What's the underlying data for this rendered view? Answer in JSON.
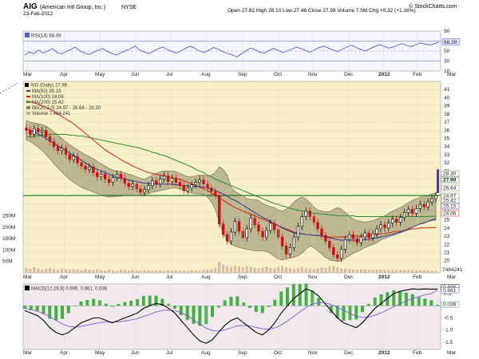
{
  "header": {
    "ticker": "AIG",
    "company": "(American Intl Group, Inc.)",
    "exchange": "NYSE",
    "date": "23-Feb-2012",
    "ohlc_text": "Open 27.82  High 28.10  Low 27.48  Close 27.99  Volume 7.5M  Chg +0.32 (+1.16%)",
    "brand": "© StockCharts.com"
  },
  "colors": {
    "price_panel_bg": "#f8f0c8",
    "rsi_panel_bg": "#f6f6ff",
    "macd_panel_bg": "#f1e9ee",
    "bollinger_fill": "#8c8866",
    "ma50": "#2a3a8a",
    "ma100": "#e02010",
    "ma200": "#2e8b2e",
    "rsi_line": "#4a5fd0",
    "macd_line": "#000000",
    "signal_line": "#7a5ad0",
    "histogram": "#44b044",
    "up_candle": "#000000",
    "down_candle": "#cc1111",
    "volume": "#d0b0a0"
  },
  "chart_data": [
    {
      "type": "line",
      "panel": "rsi",
      "legend_label": "RSI(14) 68.39",
      "ylim": [
        10,
        90
      ],
      "yticks": [
        90,
        70,
        50,
        30,
        10
      ],
      "last_value_label": "68.39",
      "series": [
        {
          "name": "RSI(14)",
          "values": [
            42,
            48,
            45,
            52,
            46,
            50,
            55,
            47,
            44,
            49,
            53,
            58,
            50,
            46,
            43,
            48,
            52,
            55,
            49,
            45,
            42,
            47,
            51,
            55,
            60,
            52,
            48,
            45,
            50,
            55,
            58,
            53,
            49,
            46,
            51,
            56,
            60,
            55,
            50,
            47,
            52,
            57,
            54,
            49,
            45,
            43,
            38,
            44,
            50,
            56,
            53,
            48,
            46,
            51,
            55,
            52,
            47,
            50,
            54,
            58,
            55,
            51,
            48,
            53,
            57,
            60,
            56,
            52,
            49,
            54,
            58,
            62,
            57,
            53,
            50,
            55,
            59,
            63,
            60,
            56,
            58,
            62,
            65,
            61,
            59,
            63,
            66,
            64,
            62,
            65,
            68
          ]
        }
      ]
    },
    {
      "type": "candlestick",
      "panel": "price",
      "x_ticks": [
        "Mar",
        "Apr",
        "May",
        "Jun",
        "Jul",
        "Aug",
        "Sep",
        "Oct",
        "Nov",
        "Dec",
        "2012",
        "Feb",
        "Mar"
      ],
      "ylim": [
        18.5,
        42
      ],
      "yticks": [
        20,
        21,
        22,
        23,
        24,
        25,
        26,
        27,
        28,
        29,
        30,
        31,
        32,
        33,
        34,
        35,
        36,
        37,
        38,
        39,
        40,
        41
      ],
      "legend": [
        "AIG (Daily) 27.99",
        "MA(50) 25.15",
        "MA(100) 24.06",
        "MA(200) 25.42",
        "BB(20,2.0) 24.97 - 26.64 - 28.30",
        "Volume 7,484,241"
      ],
      "price_labels": [
        "28.30",
        "27.99",
        "26.64",
        "25.42",
        "25.15",
        "24.97",
        "24.06"
      ],
      "horizontal_line": 27.99,
      "close": [
        36,
        35.5,
        36.2,
        35.8,
        36,
        35.2,
        34.6,
        34,
        33.5,
        33.8,
        33,
        32.4,
        32.8,
        32,
        31.6,
        31.2,
        31.5,
        30.8,
        30.3,
        30.6,
        30,
        29.6,
        30.2,
        30.6,
        30.1,
        29.5,
        29.1,
        29.4,
        28.8,
        28.4,
        28.7,
        29.2,
        29.8,
        29.4,
        30,
        30.4,
        29.7,
        30.1,
        29.6,
        29.2,
        28.6,
        28.9,
        29.3,
        29.6,
        29.9,
        29.4,
        28.9,
        28.5,
        28,
        24.5,
        23.2,
        22.4,
        23.5,
        24.8,
        23.6,
        22.8,
        23.9,
        25.2,
        24.4,
        23.6,
        22.9,
        23.7,
        24.6,
        23.8,
        22.9,
        21.8,
        20.8,
        21.6,
        22.9,
        24.2,
        25.4,
        26.1,
        25.4,
        24.7,
        23.9,
        23.1,
        22.4,
        21.6,
        20.7,
        20.3,
        21.4,
        22.6,
        23.2,
        22.7,
        22.2,
        22.9,
        23.4,
        22.8,
        23.3,
        23.9,
        24.4,
        24.0,
        24.6,
        25.1,
        24.7,
        25.3,
        25.9,
        26.3,
        25.8,
        26.4,
        26.9,
        26.6,
        27.2,
        27.6,
        27.99
      ],
      "ma50": [
        36.2,
        36,
        35.8,
        35.5,
        35.3,
        35,
        34.7,
        34.4,
        34.1,
        33.8,
        33.5,
        33.2,
        32.9,
        32.6,
        32.3,
        32,
        31.7,
        31.4,
        31.2,
        31,
        30.8,
        30.6,
        30.4,
        30.2,
        30.1,
        30,
        29.9,
        29.8,
        29.7,
        29.6,
        29.5,
        29.5,
        29.4,
        29.4,
        29.4,
        29.4,
        29.4,
        29.4,
        29.3,
        29.3,
        29.2,
        29.2,
        29.1,
        29.1,
        29.1,
        29,
        28.9,
        28.8,
        28.6,
        28.4,
        28.2,
        27.9,
        27.6,
        27.4,
        27.1,
        26.8,
        26.5,
        26.2,
        25.9,
        25.6,
        25.3,
        25.1,
        24.8,
        24.5,
        24.3,
        24,
        23.8,
        23.6,
        23.4,
        23.3,
        23.3,
        23.2,
        23.2,
        23.1,
        23.1,
        23,
        22.9,
        22.8,
        22.7,
        22.6,
        22.5,
        22.5,
        22.5,
        22.5,
        22.5,
        22.5,
        22.6,
        22.6,
        22.7,
        22.8,
        22.9,
        23,
        23.1,
        23.2,
        23.4,
        23.5,
        23.7,
        23.9,
        24.1,
        24.3,
        24.5,
        24.6,
        24.8,
        25,
        25.15
      ],
      "ma100": [
        39.6,
        39.5,
        39.4,
        39.2,
        39,
        38.8,
        38.6,
        38.3,
        38,
        37.7,
        37.4,
        37.1,
        36.8,
        36.4,
        36,
        35.6,
        35.2,
        34.8,
        34.4,
        34,
        33.6,
        33.3,
        33,
        32.7,
        32.4,
        32.1,
        31.9,
        31.6,
        31.4,
        31.2,
        31,
        30.8,
        30.7,
        30.6,
        30.5,
        30.4,
        30.3,
        30.2,
        30.1,
        30,
        29.8,
        29.6,
        29.4,
        29.2,
        29,
        28.8,
        28.6,
        28.3,
        28,
        27.7,
        27.4,
        27.1,
        26.8,
        26.5,
        26.3,
        26.1,
        25.9,
        25.7,
        25.5,
        25.3,
        25.1,
        24.9,
        24.7,
        24.5,
        24.3,
        24.1,
        23.9,
        23.7,
        23.5,
        23.4,
        23.3,
        23.2,
        23.2,
        23.1,
        23.1,
        23,
        23,
        22.9,
        22.9,
        22.9,
        22.9,
        22.9,
        23,
        23,
        23,
        23,
        23.1,
        23.1,
        23.2,
        23.2,
        23.3,
        23.3,
        23.4,
        23.5,
        23.6,
        23.6,
        23.7,
        23.8,
        23.9,
        23.9,
        24,
        24,
        24.05,
        24.06,
        24.06
      ],
      "ma200": [
        35.2,
        35.2,
        35.3,
        35.3,
        35.4,
        35.4,
        35.5,
        35.5,
        35.5,
        35.5,
        35.5,
        35.4,
        35.4,
        35.3,
        35.3,
        35.2,
        35.1,
        35,
        34.9,
        34.8,
        34.7,
        34.6,
        34.5,
        34.4,
        34.3,
        34.2,
        34.1,
        34,
        33.9,
        33.8,
        33.6,
        33.5,
        33.3,
        33.2,
        33,
        32.9,
        32.7,
        32.5,
        32.3,
        32.1,
        31.9,
        31.7,
        31.5,
        31.2,
        31,
        30.8,
        30.5,
        30.3,
        30,
        29.8,
        29.6,
        29.4,
        29.2,
        29,
        28.8,
        28.6,
        28.4,
        28.2,
        28,
        27.8,
        27.6,
        27.4,
        27.2,
        27,
        26.9,
        26.7,
        26.6,
        26.4,
        26.3,
        26.2,
        26.1,
        26,
        25.9,
        25.8,
        25.8,
        25.7,
        25.7,
        25.6,
        25.6,
        25.5,
        25.5,
        25.5,
        25.5,
        25.5,
        25.4,
        25.4,
        25.4,
        25.4,
        25.4,
        25.4,
        25.4,
        25.4,
        25.4,
        25.4,
        25.4,
        25.4,
        25.4,
        25.4,
        25.4,
        25.4,
        25.4,
        25.4,
        25.4,
        25.42,
        25.42
      ],
      "bb_upper": [
        37.2,
        37,
        36.9,
        36.8,
        36.7,
        36.5,
        36.2,
        35.8,
        35.4,
        35,
        34.6,
        34.2,
        33.9,
        33.6,
        33.3,
        33,
        32.8,
        32.5,
        32.2,
        31.9,
        31.6,
        31.3,
        31.1,
        31,
        30.9,
        30.8,
        30.6,
        30.5,
        30.3,
        30.1,
        30,
        30.2,
        30.5,
        30.7,
        30.9,
        31,
        31,
        31,
        30.9,
        30.7,
        30.5,
        30.3,
        30.3,
        30.4,
        30.5,
        30.5,
        30.4,
        30.5,
        30.8,
        31.5,
        31.2,
        30.5,
        29,
        28.5,
        28.2,
        28,
        27.6,
        27.5,
        27.5,
        27.4,
        27,
        26.8,
        26.6,
        26.5,
        26.2,
        26.1,
        26.3,
        26.7,
        27.2,
        27.6,
        27.8,
        27.6,
        27.1,
        26.6,
        26.2,
        26.1,
        26,
        26,
        26.3,
        26.5,
        26.3,
        25.9,
        25.5,
        25.1,
        24.9,
        24.8,
        24.7,
        24.8,
        24.9,
        25.1,
        25.3,
        25.5,
        25.8,
        26.1,
        26.3,
        26.5,
        26.8,
        27.1,
        27.4,
        27.6,
        27.8,
        27.9,
        28,
        28.2,
        28.3
      ],
      "bb_lower": [
        34.8,
        34.6,
        34.3,
        33.9,
        33.5,
        33,
        32.5,
        31.9,
        31.4,
        30.9,
        30.4,
        30,
        29.6,
        29.3,
        29,
        28.8,
        28.6,
        28.4,
        28.2,
        28,
        27.9,
        27.8,
        27.8,
        27.9,
        27.9,
        28,
        28,
        28,
        28,
        28,
        28.1,
        28.2,
        28.4,
        28.5,
        28.6,
        28.7,
        28.8,
        28.9,
        28.9,
        28.8,
        28.6,
        28.4,
        28.3,
        28.2,
        28.2,
        28.1,
        27.8,
        27.2,
        26.3,
        24.6,
        23.3,
        22.5,
        22,
        21.8,
        21.6,
        21.5,
        21.4,
        21.3,
        21.2,
        21.2,
        21.2,
        21.1,
        20.9,
        20.5,
        20.2,
        20.1,
        20.2,
        20.3,
        20.4,
        20.6,
        20.9,
        21.4,
        21.8,
        21.6,
        21.2,
        20.8,
        20.4,
        20.1,
        20,
        19.9,
        20,
        20.3,
        20.6,
        20.9,
        21.1,
        21.3,
        21.6,
        21.8,
        22,
        22.2,
        22.5,
        22.7,
        22.9,
        23.1,
        23.2,
        23.4,
        23.6,
        23.8,
        24.1,
        24.3,
        24.5,
        24.7,
        24.8,
        24.9,
        24.97
      ]
    },
    {
      "type": "bar",
      "panel": "volume",
      "yticks": [
        "250M",
        "200M",
        "150M",
        "100M",
        "50M"
      ],
      "ylim": [
        0,
        280
      ],
      "volume_label": "7484241",
      "values": [
        22,
        18,
        25,
        20,
        15,
        18,
        21,
        17,
        14,
        19,
        16,
        13,
        18,
        15,
        12,
        17,
        14,
        12,
        16,
        13,
        11,
        15,
        12,
        10,
        14,
        12,
        10,
        13,
        11,
        9,
        12,
        10,
        9,
        11,
        10,
        8,
        12,
        10,
        9,
        11,
        10,
        9,
        12,
        11,
        10,
        13,
        14,
        16,
        22,
        48,
        36,
        30,
        26,
        32,
        28,
        24,
        30,
        26,
        22,
        20,
        24,
        28,
        22,
        20,
        26,
        30,
        24,
        20,
        18,
        22,
        26,
        20,
        18,
        16,
        20,
        24,
        22,
        28,
        30,
        24,
        20,
        18,
        16,
        15,
        14,
        16,
        15,
        14,
        13,
        14,
        15,
        14,
        13,
        12,
        13,
        14,
        13,
        12,
        13,
        12,
        11,
        12,
        11,
        10,
        8
      ]
    },
    {
      "type": "line",
      "panel": "macd",
      "legend_label": "MACD(12,26,9) 0.696, 0.661, 0.036",
      "yticks": [
        "0.5",
        "0.0",
        "-0.5",
        "-1.0",
        "-1.5"
      ],
      "ylim": [
        -1.8,
        0.9
      ],
      "value_labels": [
        "0.696",
        "0.661",
        "0.036"
      ],
      "series": [
        {
          "name": "MACD(12,26,9)",
          "values": [
            -0.2,
            -0.3,
            -0.4,
            -0.6,
            -0.9,
            -1.1,
            -1.2,
            -1.1,
            -0.9,
            -0.7,
            -0.6,
            -0.5,
            -0.5,
            -0.6,
            -0.7,
            -0.6,
            -0.5,
            -0.4,
            -0.3,
            -0.1,
            0.0,
            0.1,
            0.05,
            -0.1,
            -0.3,
            -0.6,
            -0.9,
            -1.2,
            -1.45,
            -1.55,
            -1.4,
            -1.1,
            -0.8,
            -0.6,
            -0.5,
            -0.7,
            -0.9,
            -1.1,
            -1.2,
            -1.0,
            -0.7,
            -0.3,
            0.0,
            0.3,
            0.5,
            0.7,
            0.6,
            0.4,
            0.1,
            -0.2,
            -0.5,
            -0.7,
            -0.8,
            -0.9,
            -0.7,
            -0.4,
            -0.1,
            0.1,
            0.3,
            0.5,
            0.6,
            0.65,
            0.7,
            0.68,
            0.7,
            0.69,
            0.696
          ]
        },
        {
          "name": "signal",
          "values": [
            -0.1,
            -0.15,
            -0.22,
            -0.32,
            -0.45,
            -0.6,
            -0.75,
            -0.85,
            -0.88,
            -0.85,
            -0.8,
            -0.74,
            -0.69,
            -0.67,
            -0.67,
            -0.66,
            -0.63,
            -0.58,
            -0.53,
            -0.44,
            -0.35,
            -0.25,
            -0.19,
            -0.17,
            -0.2,
            -0.28,
            -0.41,
            -0.58,
            -0.76,
            -0.92,
            -1.02,
            -1.04,
            -0.99,
            -0.91,
            -0.83,
            -0.81,
            -0.83,
            -0.89,
            -0.95,
            -0.96,
            -0.91,
            -0.79,
            -0.63,
            -0.44,
            -0.25,
            -0.06,
            0.07,
            0.13,
            0.12,
            0.05,
            -0.06,
            -0.19,
            -0.31,
            -0.43,
            -0.48,
            -0.47,
            -0.39,
            -0.29,
            -0.17,
            -0.04,
            0.09,
            0.2,
            0.3,
            0.38,
            0.45,
            0.5,
            0.661
          ]
        }
      ]
    }
  ]
}
